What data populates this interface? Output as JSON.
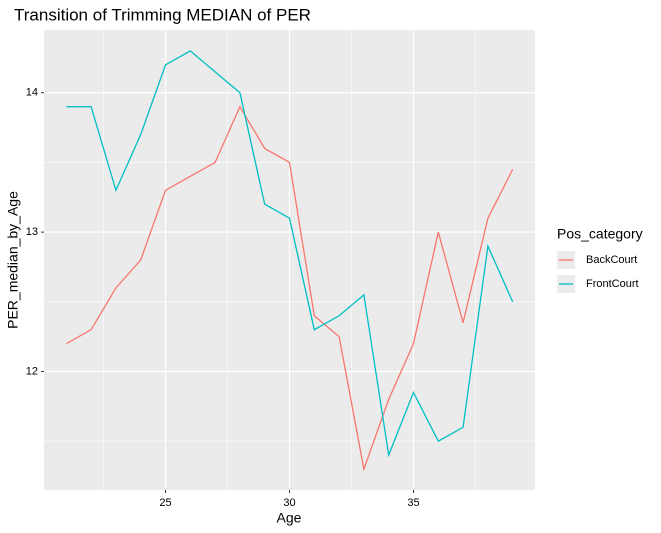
{
  "chart_data": {
    "type": "line",
    "title": "Transition of Trimming MEDIAN of PER",
    "x_label": "Age",
    "y_label": "PER_median_by_Age",
    "x": [
      21,
      22,
      23,
      24,
      25,
      26,
      27,
      28,
      29,
      30,
      31,
      32,
      33,
      34,
      35,
      36,
      37,
      38,
      39
    ],
    "series": [
      {
        "name": "BackCourt",
        "color": "#f8766d",
        "values": [
          12.2,
          12.3,
          12.6,
          12.8,
          13.3,
          13.4,
          13.5,
          13.9,
          13.6,
          13.5,
          12.4,
          12.25,
          11.3,
          11.8,
          12.2,
          13.0,
          12.35,
          13.1,
          13.45
        ]
      },
      {
        "name": "FrontCourt",
        "color": "#00bfc4",
        "values": [
          13.9,
          13.9,
          13.3,
          13.7,
          14.2,
          14.3,
          14.15,
          14.0,
          13.2,
          13.1,
          12.3,
          12.4,
          12.55,
          11.4,
          11.85,
          11.5,
          11.6,
          12.9,
          12.5
        ]
      }
    ],
    "xlim": [
      20.1,
      39.9
    ],
    "xticks": [
      25,
      30,
      35
    ],
    "ylim": [
      11.15,
      14.45
    ],
    "yticks": [
      12,
      13,
      14
    ],
    "grid": true,
    "legend_title": "Pos_category",
    "legend_position": "right"
  }
}
